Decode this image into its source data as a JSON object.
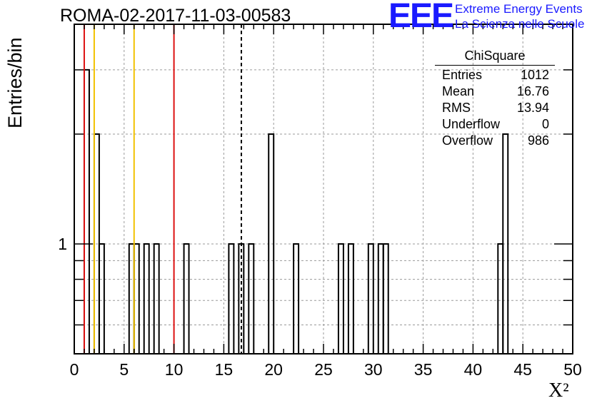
{
  "header": {
    "run_title": "ROMA-02-2017-11-03-00583",
    "logo": {
      "mark": "EEE",
      "line1": "Extreme Energy Events",
      "line2": "La Scienza nelle Scuole"
    }
  },
  "stats_box": {
    "title": "ChiSquare",
    "rows": [
      {
        "label": "Entries",
        "value": "1012"
      },
      {
        "label": "Mean",
        "value": "16.76"
      },
      {
        "label": "RMS",
        "value": "13.94"
      },
      {
        "label": "Underflow",
        "value": "0"
      },
      {
        "label": "Overflow",
        "value": "986"
      }
    ]
  },
  "chart_data": {
    "type": "bar",
    "histogram": true,
    "xlabel": "X²",
    "ylabel": "Entries/bin",
    "xlim": [
      0,
      50
    ],
    "ylim": [
      0.5,
      4
    ],
    "yscale": "log",
    "grid": true,
    "bin_width": 0.5,
    "bins": [
      {
        "x": 1.0,
        "y": 3
      },
      {
        "x": 2.0,
        "y": 2
      },
      {
        "x": 2.5,
        "y": 1
      },
      {
        "x": 5.5,
        "y": 1
      },
      {
        "x": 6.0,
        "y": 1
      },
      {
        "x": 7.0,
        "y": 1
      },
      {
        "x": 8.0,
        "y": 1
      },
      {
        "x": 11.0,
        "y": 1
      },
      {
        "x": 15.5,
        "y": 1
      },
      {
        "x": 16.5,
        "y": 1
      },
      {
        "x": 17.5,
        "y": 1
      },
      {
        "x": 19.5,
        "y": 2
      },
      {
        "x": 22.0,
        "y": 1
      },
      {
        "x": 26.5,
        "y": 1
      },
      {
        "x": 27.5,
        "y": 1
      },
      {
        "x": 29.5,
        "y": 1
      },
      {
        "x": 30.5,
        "y": 1
      },
      {
        "x": 31.0,
        "y": 1
      },
      {
        "x": 42.5,
        "y": 1
      },
      {
        "x": 43.0,
        "y": 2
      }
    ],
    "x_ticks": [
      "0",
      "5",
      "10",
      "15",
      "20",
      "25",
      "30",
      "35",
      "40",
      "45",
      "50"
    ],
    "y_tick_labels": [
      {
        "value": 1,
        "label": "1"
      }
    ],
    "vertical_lines": [
      {
        "x": 1.0,
        "color": "#dd1111",
        "style": "solid"
      },
      {
        "x": 2.0,
        "color": "#f2c200",
        "style": "solid"
      },
      {
        "x": 6.0,
        "color": "#f2c200",
        "style": "solid"
      },
      {
        "x": 10.0,
        "color": "#dd1111",
        "style": "solid"
      },
      {
        "x": 16.76,
        "color": "#000000",
        "style": "dashed"
      }
    ]
  }
}
